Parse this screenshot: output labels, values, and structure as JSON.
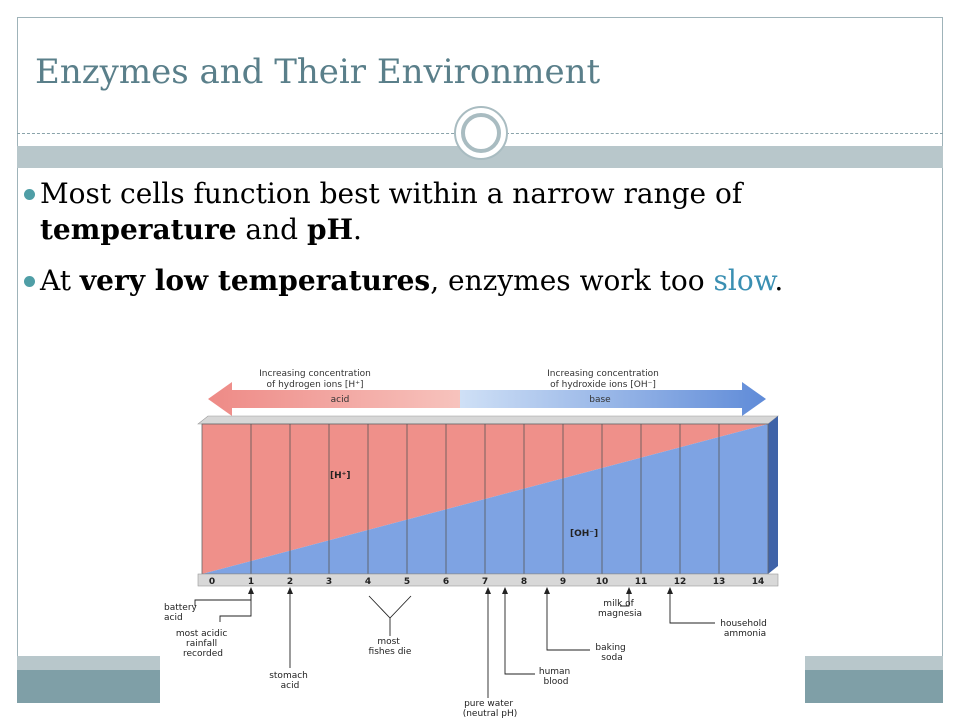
{
  "slide": {
    "title": "Enzymes and Their Environment",
    "bullet1": {
      "t1": "Most cells function best within a narrow range of ",
      "t2": "temperature",
      "t3": " and ",
      "t4": "pH",
      "t5": "."
    },
    "bullet2": {
      "t1": "At ",
      "t2": "very low temperatures",
      "t3": ", enzymes work too ",
      "t4": "slow",
      "t5": "."
    }
  },
  "diagram": {
    "header_left": [
      "Increasing concentration",
      "of hydrogen ions [H⁺]"
    ],
    "header_right": [
      "Increasing concentration",
      "of hydroxide ions [OH⁻]"
    ],
    "acid_label": "acid",
    "base_label": "base",
    "h_label": "[H⁺]",
    "oh_label": "[OH⁻]",
    "ticks": [
      "0",
      "1",
      "2",
      "3",
      "4",
      "5",
      "6",
      "7",
      "8",
      "9",
      "10",
      "11",
      "12",
      "13",
      "14"
    ],
    "annotations": {
      "battery_acid": [
        "battery",
        "acid"
      ],
      "acid_rain": [
        "most acidic",
        "rainfall",
        "recorded"
      ],
      "stomach_acid": [
        "stomach",
        "acid"
      ],
      "fishes": [
        "most",
        "fishes die"
      ],
      "pure_water": [
        "pure water",
        "(neutral pH)"
      ],
      "blood": [
        "human",
        "blood"
      ],
      "baking_soda": [
        "baking",
        "soda"
      ],
      "milk_magnesia": [
        "milk of",
        "magnesia"
      ],
      "ammonia": [
        "household",
        "ammonia"
      ]
    },
    "colors": {
      "acid": "#ef8a85",
      "base": "#6f96dc",
      "acid_light": "#f6b3ae",
      "base_light": "#a9c2ee"
    }
  }
}
